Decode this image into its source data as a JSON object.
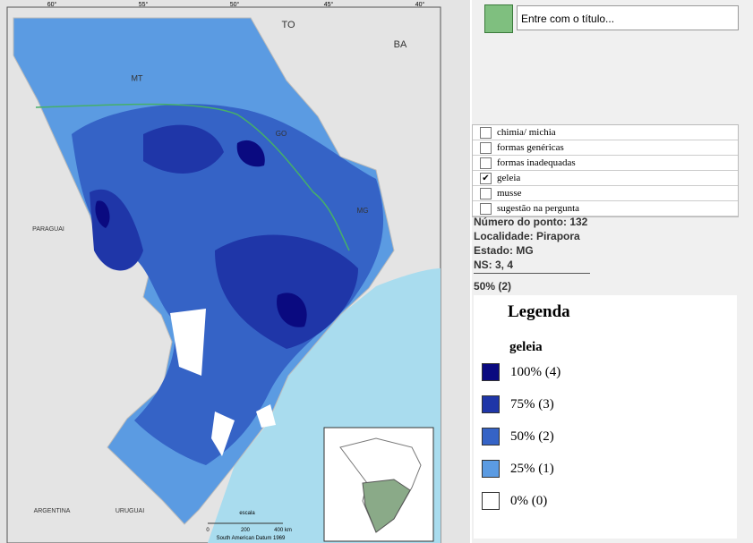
{
  "map": {
    "longitudes": [
      "60°",
      "55°",
      "50°",
      "45°",
      "40°"
    ],
    "labels": [
      {
        "text": "TO"
      },
      {
        "text": "BA"
      },
      {
        "text": "MT"
      },
      {
        "text": "GO"
      },
      {
        "text": "MG"
      },
      {
        "text": "PARAGUAI"
      },
      {
        "text": "ARGENTINA"
      },
      {
        "text": "URUGUAI"
      }
    ],
    "scale": {
      "title": "escala",
      "ticks": [
        "0",
        "200",
        "400 km"
      ],
      "datum": "South American Datum 1969"
    }
  },
  "panel": {
    "title_placeholder": "Entre com o título...",
    "options": [
      {
        "label": "chimia/ michia",
        "checked": false
      },
      {
        "label": "formas genéricas",
        "checked": false
      },
      {
        "label": "formas inadequadas",
        "checked": false
      },
      {
        "label": "geleia",
        "checked": true
      },
      {
        "label": "musse",
        "checked": false
      },
      {
        "label": "sugestão na pergunta",
        "checked": false
      }
    ],
    "info": [
      "Número do ponto: 132",
      "Localidade: Pirapora",
      "Estado: MG",
      "NS: 3, 4"
    ],
    "selected_value": "50% (2)"
  },
  "legend": {
    "title": "Legenda",
    "subtitle": "geleia",
    "items": [
      {
        "label": "100% (4)",
        "color": "#0a0a80"
      },
      {
        "label": "75% (3)",
        "color": "#1f36a8"
      },
      {
        "label": "50% (2)",
        "color": "#3563c6"
      },
      {
        "label": "25% (1)",
        "color": "#5b9be2"
      },
      {
        "label": "0% (0)",
        "color": "#ffffff"
      }
    ]
  }
}
